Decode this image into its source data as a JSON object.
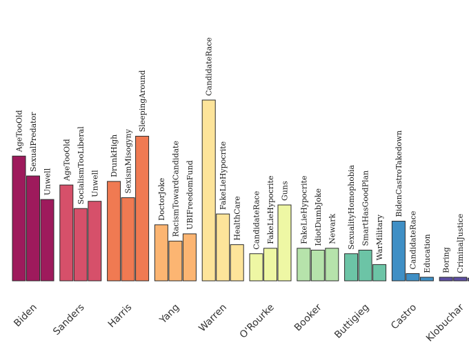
{
  "chart_data": {
    "type": "bar",
    "ylim": [
      0,
      100
    ],
    "groups": [
      {
        "name": "Biden",
        "color": "#9e1a5c",
        "bars": [
          {
            "label": "AgeTooOld",
            "value": 69
          },
          {
            "label": "SexualPredator",
            "value": 58
          },
          {
            "label": "Unwell",
            "value": 45
          }
        ]
      },
      {
        "name": "Sanders",
        "color": "#d6506a",
        "bars": [
          {
            "label": "AgeTooOld",
            "value": 53
          },
          {
            "label": "SocialismTooLiberal",
            "value": 40
          },
          {
            "label": "Unwell",
            "value": 44
          }
        ]
      },
      {
        "name": "Harris",
        "color": "#f07a52",
        "bars": [
          {
            "label": "DrunkHigh",
            "value": 55
          },
          {
            "label": "SexismMisogyny",
            "value": 46
          },
          {
            "label": "SleepingAround",
            "value": 80
          }
        ]
      },
      {
        "name": "Yang",
        "color": "#fcb572",
        "bars": [
          {
            "label": "DoctorJoke",
            "value": 31
          },
          {
            "label": "RacismTowardCandidate",
            "value": 22
          },
          {
            "label": "UBIFreedomFund",
            "value": 26
          }
        ]
      },
      {
        "name": "Warren",
        "color": "#fde49a",
        "bars": [
          {
            "label": "CandidateRace",
            "value": 100
          },
          {
            "label": "FakeLieHypocrite",
            "value": 37
          },
          {
            "label": "HealthCare",
            "value": 20
          }
        ]
      },
      {
        "name": "O'Rourke",
        "color": "#eef7a4",
        "bars": [
          {
            "label": "CandidateRace",
            "value": 15
          },
          {
            "label": "FakeLieHypocrite",
            "value": 18
          },
          {
            "label": "Guns",
            "value": 42
          }
        ]
      },
      {
        "name": "Booker",
        "color": "#b6e3ab",
        "bars": [
          {
            "label": "FakeLieHypocrite",
            "value": 18
          },
          {
            "label": "IdiotDumbJoke",
            "value": 17
          },
          {
            "label": "Newark",
            "value": 18
          }
        ]
      },
      {
        "name": "Buttigieg",
        "color": "#6cc4a6",
        "bars": [
          {
            "label": "SexualityHomophobia",
            "value": 15
          },
          {
            "label": "SmartHasGoodPlan",
            "value": 17
          },
          {
            "label": "WarMilitary",
            "value": 9
          }
        ]
      },
      {
        "name": "Castro",
        "color": "#3f8fc5",
        "bars": [
          {
            "label": "BidenCastroTakedown",
            "value": 33
          },
          {
            "label": "CandidateRace",
            "value": 4
          },
          {
            "label": "Education",
            "value": 2
          }
        ]
      },
      {
        "name": "Klobuchar",
        "color": "#5e4fa2",
        "bars": [
          {
            "label": "Boring",
            "value": 2
          },
          {
            "label": "CriminalJustice",
            "value": 2
          },
          {
            "label": "",
            "value": 1.5
          }
        ]
      }
    ]
  }
}
